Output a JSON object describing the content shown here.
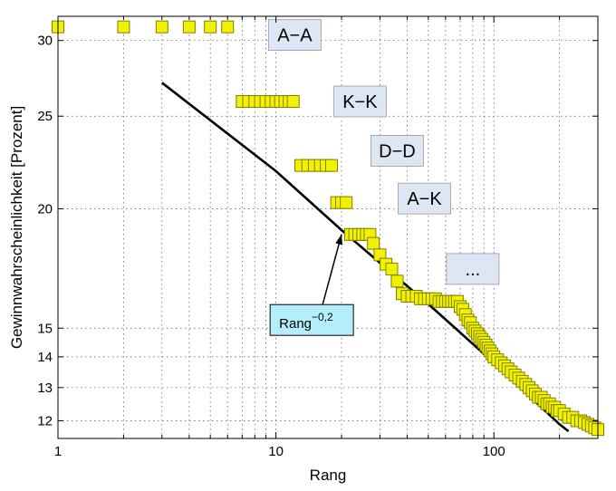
{
  "chart_data": {
    "type": "scatter",
    "title": "",
    "xlabel": "Rang",
    "ylabel": "Gewinnwahrscheinlichkeit [Prozent]",
    "x_scale": "log",
    "y_scale": "log",
    "xlim": [
      1,
      300
    ],
    "ylim": [
      11.5,
      31.8
    ],
    "grid": true,
    "x_ticks": [
      1,
      10,
      100
    ],
    "y_ticks": [
      12,
      13,
      14,
      15,
      20,
      25,
      30
    ],
    "colors": {
      "marker_fill": "#f2f200",
      "marker_edge": "#808000",
      "line": "#000000",
      "hand_box": "#dde6f3",
      "formula_box": "#b4eefb"
    },
    "series": [
      {
        "kind": "scatter",
        "marker": "square",
        "points": [
          [
            1,
            31.0
          ],
          [
            2,
            31.0
          ],
          [
            3,
            31.0
          ],
          [
            4,
            31.0
          ],
          [
            5,
            31.0
          ],
          [
            6,
            31.0
          ],
          [
            7,
            25.9
          ],
          [
            7.5,
            25.9
          ],
          [
            8,
            25.9
          ],
          [
            8.5,
            25.9
          ],
          [
            9,
            25.9
          ],
          [
            9.5,
            25.9
          ],
          [
            10,
            25.9
          ],
          [
            10.5,
            25.9
          ],
          [
            11,
            25.9
          ],
          [
            11.5,
            25.9
          ],
          [
            12,
            25.9
          ],
          [
            13,
            22.2
          ],
          [
            14,
            22.2
          ],
          [
            15,
            22.2
          ],
          [
            16,
            22.2
          ],
          [
            17,
            22.2
          ],
          [
            18,
            22.2
          ],
          [
            19,
            20.3
          ],
          [
            20,
            20.3
          ],
          [
            21,
            20.3
          ],
          [
            22,
            18.8
          ],
          [
            23,
            18.8
          ],
          [
            24,
            18.8
          ],
          [
            25,
            18.8
          ],
          [
            26,
            18.8
          ],
          [
            27,
            18.8
          ],
          [
            28,
            18.4
          ],
          [
            30,
            17.9
          ],
          [
            32,
            17.5
          ],
          [
            34,
            17.3
          ],
          [
            36,
            16.8
          ],
          [
            38,
            16.3
          ],
          [
            40,
            16.2
          ],
          [
            42,
            16.2
          ],
          [
            44,
            16.2
          ],
          [
            46,
            16.1
          ],
          [
            48,
            16.1
          ],
          [
            50,
            16.1
          ],
          [
            52,
            16.1
          ],
          [
            54,
            16.1
          ],
          [
            56,
            16.0
          ],
          [
            58,
            16.0
          ],
          [
            60,
            16.0
          ],
          [
            62,
            16.0
          ],
          [
            64,
            16.0
          ],
          [
            66,
            16.0
          ],
          [
            68,
            16.0
          ],
          [
            70,
            15.8
          ],
          [
            72,
            15.7
          ],
          [
            74,
            15.5
          ],
          [
            76,
            15.3
          ],
          [
            78,
            15.2
          ],
          [
            80,
            15.0
          ],
          [
            82,
            14.9
          ],
          [
            84,
            14.8
          ],
          [
            86,
            14.7
          ],
          [
            88,
            14.6
          ],
          [
            90,
            14.5
          ],
          [
            92,
            14.4
          ],
          [
            94,
            14.3
          ],
          [
            96,
            14.2
          ],
          [
            98,
            14.1
          ],
          [
            100,
            14.0
          ],
          [
            104,
            13.9
          ],
          [
            108,
            13.8
          ],
          [
            112,
            13.7
          ],
          [
            116,
            13.6
          ],
          [
            120,
            13.5
          ],
          [
            125,
            13.4
          ],
          [
            130,
            13.3
          ],
          [
            135,
            13.2
          ],
          [
            140,
            13.1
          ],
          [
            145,
            13.0
          ],
          [
            150,
            12.9
          ],
          [
            155,
            12.8
          ],
          [
            160,
            12.7
          ],
          [
            165,
            12.7
          ],
          [
            170,
            12.6
          ],
          [
            175,
            12.5
          ],
          [
            180,
            12.5
          ],
          [
            185,
            12.4
          ],
          [
            190,
            12.4
          ],
          [
            195,
            12.3
          ],
          [
            200,
            12.3
          ],
          [
            210,
            12.2
          ],
          [
            220,
            12.1
          ],
          [
            230,
            12.1
          ],
          [
            240,
            12.0
          ],
          [
            250,
            12.0
          ],
          [
            260,
            11.95
          ],
          [
            270,
            11.9
          ],
          [
            280,
            11.85
          ],
          [
            290,
            11.8
          ],
          [
            300,
            11.75
          ]
        ]
      },
      {
        "kind": "line",
        "formula": "Rang^-0,2",
        "points": [
          [
            3,
            27.1
          ],
          [
            10,
            21.9
          ],
          [
            20,
            19.0
          ],
          [
            50,
            15.9
          ],
          [
            100,
            13.8
          ],
          [
            200,
            11.9
          ],
          [
            220,
            11.7
          ]
        ]
      }
    ],
    "annotations": [
      {
        "text": "A−A",
        "box": "hand_box",
        "at": [
          12.2,
          30.4
        ]
      },
      {
        "text": "K−K",
        "box": "hand_box",
        "at": [
          24.3,
          25.9
        ]
      },
      {
        "text": "D−D",
        "box": "hand_box",
        "at": [
          36,
          23.0
        ]
      },
      {
        "text": "A−K",
        "box": "hand_box",
        "at": [
          48,
          20.5
        ]
      },
      {
        "text": "...",
        "box": "hand_box",
        "at": [
          80,
          17.3
        ]
      }
    ],
    "formula_label": {
      "base": "Rang",
      "exponent": "−0,2",
      "at": [
        14.6,
        15.3
      ],
      "arrow_to": [
        20,
        18.8
      ]
    }
  }
}
